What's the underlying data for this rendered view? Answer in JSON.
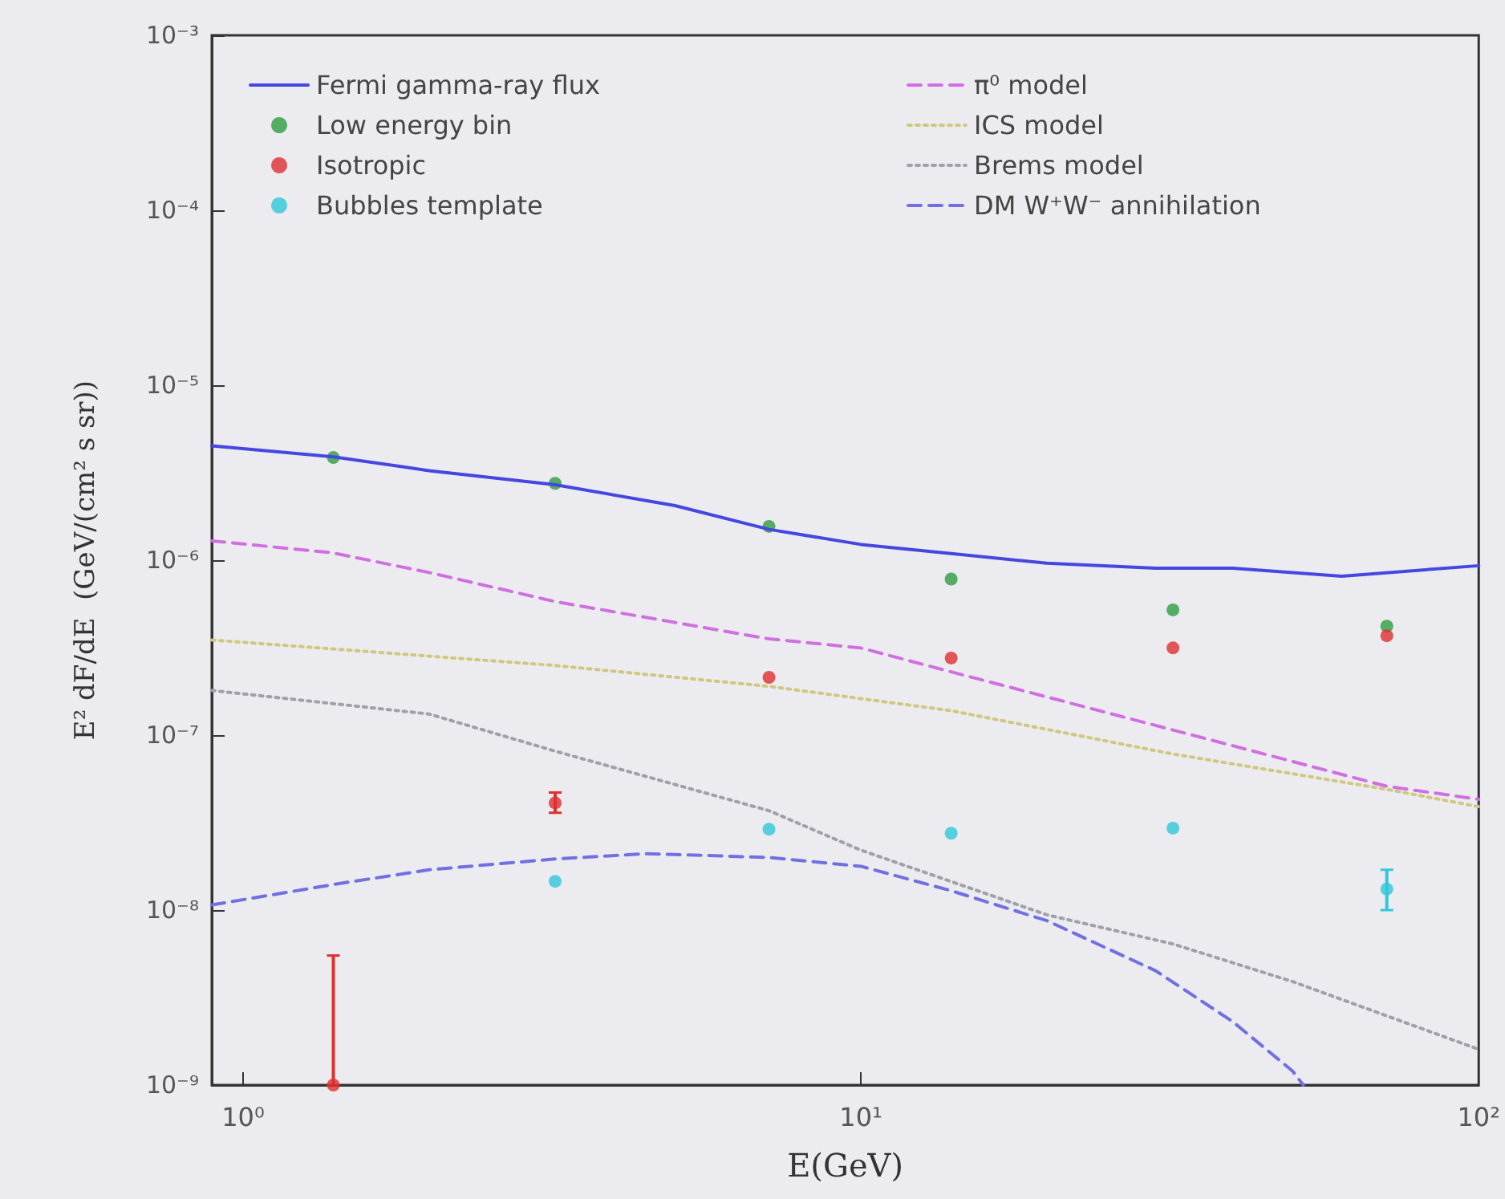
{
  "chart_data": {
    "type": "line",
    "xlabel": "E(GeV)",
    "ylabel": "E² dF/dE  (GeV/(cm² s sr))",
    "log": "xy",
    "grid": false,
    "legend": "top",
    "xlim": [
      0.89,
      100
    ],
    "xticks": [
      {
        "value": 1,
        "label": "10⁰"
      },
      {
        "value": 10,
        "label": "10¹"
      },
      {
        "value": 100,
        "label": "10²"
      }
    ],
    "ylim": [
      1e-09,
      0.001
    ],
    "yticks": [
      {
        "value": 1e-09,
        "label": "10⁻⁹"
      },
      {
        "value": 1e-08,
        "label": "10⁻⁸"
      },
      {
        "value": 1e-07,
        "label": "10⁻⁷"
      },
      {
        "value": 1e-06,
        "label": "10⁻⁶"
      },
      {
        "value": 1e-05,
        "label": "10⁻⁵"
      },
      {
        "value": 0.0001,
        "label": "10⁻⁴"
      },
      {
        "value": 0.001,
        "label": "10⁻³"
      }
    ],
    "series": [
      {
        "name": "Fermi gamma-ray flux",
        "line_style": "solid",
        "marker": "none",
        "color": "#4646e0",
        "x": [
          0.89,
          1.4,
          2,
          3.2,
          5,
          7.1,
          10,
          14,
          20,
          30,
          40,
          60,
          100
        ],
        "values": [
          4.5e-06,
          3.9e-06,
          3.25e-06,
          2.7e-06,
          2.05e-06,
          1.5e-06,
          1.23e-06,
          1.09e-06,
          9.6e-07,
          9e-07,
          9e-07,
          8.1e-07,
          9.3e-07
        ]
      },
      {
        "name": "Low energy bin",
        "type": "scatter",
        "marker": "circle",
        "color": "#2e9e3e",
        "x": [
          1.4,
          3.2,
          7.1,
          14,
          32,
          71
        ],
        "values": [
          3.86e-06,
          2.75e-06,
          1.56e-06,
          7.8e-07,
          5.2e-07,
          4.2e-07
        ]
      },
      {
        "name": "Isotropic",
        "type": "scatter",
        "marker": "circle",
        "color": "#e03030",
        "x": [
          1.4,
          3.2,
          7.1,
          14,
          32,
          71
        ],
        "values": [
          1e-09,
          4.1e-08,
          2.14e-07,
          2.76e-07,
          3.15e-07,
          3.7e-07
        ],
        "errors": [
          [
            1e-09,
            5.5e-09
          ],
          [
            3.6e-08,
            4.7e-08
          ],
          null,
          null,
          null,
          null
        ]
      },
      {
        "name": "Bubbles template",
        "type": "scatter",
        "marker": "circle",
        "color": "#30c8d8",
        "x": [
          3.2,
          7.1,
          14,
          32,
          71
        ],
        "values": [
          1.46e-08,
          2.9e-08,
          2.75e-08,
          2.94e-08,
          1.32e-08
        ],
        "errors": [
          null,
          null,
          null,
          null,
          [
            1e-08,
            1.7e-08
          ]
        ]
      },
      {
        "name": "π⁰ model",
        "line_style": "dashed",
        "marker": "none",
        "color": "#d070e0",
        "x": [
          0.89,
          1.4,
          2,
          3.2,
          7.1,
          10,
          14,
          32,
          71,
          100
        ],
        "values": [
          1.29e-06,
          1.1e-06,
          8.5e-07,
          5.8e-07,
          3.55e-07,
          3.15e-07,
          2.3e-07,
          1.07e-07,
          5.1e-08,
          4.3e-08
        ]
      },
      {
        "name": "ICS model",
        "line_style": "dotted",
        "marker": "none",
        "color": "#d0c880",
        "x": [
          0.89,
          3.2,
          7.1,
          14,
          32,
          71,
          100
        ],
        "values": [
          3.5e-07,
          2.5e-07,
          1.9e-07,
          1.38e-07,
          7.8e-08,
          4.9e-08,
          3.9e-08
        ]
      },
      {
        "name": "Brems model",
        "line_style": "dotted",
        "marker": "none",
        "color": "#a0a0a8",
        "x": [
          0.89,
          2,
          3.2,
          7.1,
          10,
          20,
          32,
          50,
          100
        ],
        "values": [
          1.8e-07,
          1.32e-07,
          8.1e-08,
          3.7e-08,
          2.2e-08,
          9.4e-09,
          6.4e-09,
          3.9e-09,
          1.6e-09
        ]
      },
      {
        "name": "DM W⁺W⁻ annihilation",
        "line_style": "dashed",
        "marker": "none",
        "color": "#7070e0",
        "x": [
          0.89,
          1.4,
          2,
          3.2,
          4.5,
          7.1,
          10,
          14,
          20,
          30,
          40,
          50,
          52
        ],
        "values": [
          1.07e-08,
          1.4e-08,
          1.7e-08,
          1.96e-08,
          2.1e-08,
          2e-08,
          1.78e-08,
          1.29e-08,
          8.7e-09,
          4.5e-09,
          2.3e-09,
          1.2e-09,
          1e-09
        ]
      }
    ]
  }
}
